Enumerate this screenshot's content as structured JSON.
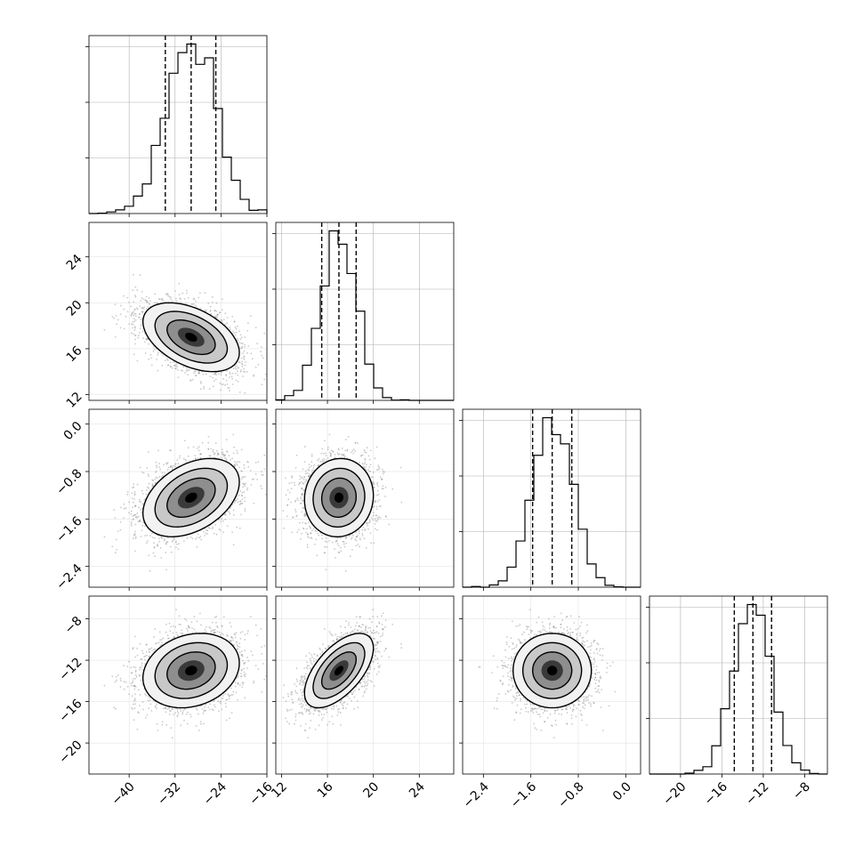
{
  "chart_data": {
    "type": "scatter",
    "subtype": "corner-plot",
    "grid": true,
    "params": [
      {
        "range": [
          -47,
          -16
        ],
        "ticks": [
          -40,
          -32,
          -24,
          -16
        ],
        "ticklabels": [
          "−40",
          "−32",
          "−24",
          "−16"
        ],
        "mean": -29.2,
        "sigma": 4.2,
        "quantiles": [
          -33.7,
          -29.2,
          -24.9
        ]
      },
      {
        "range": [
          11.5,
          27
        ],
        "ticks": [
          12,
          16,
          20,
          24
        ],
        "ticklabels": [
          "12",
          "16",
          "20",
          "24"
        ],
        "mean": 17.0,
        "sigma": 1.5,
        "quantiles": [
          15.5,
          17.0,
          18.5
        ]
      },
      {
        "range": [
          -2.75,
          0.25
        ],
        "ticks": [
          -2.4,
          -1.6,
          -0.8,
          0.0
        ],
        "ticklabels": [
          "−2.4",
          "−1.6",
          "−0.8",
          "0.0"
        ],
        "mean": -1.24,
        "sigma": 0.33,
        "quantiles": [
          -1.57,
          -1.24,
          -0.91
        ]
      },
      {
        "range": [
          -23,
          -5.8
        ],
        "ticks": [
          -20,
          -16,
          -12,
          -8
        ],
        "ticklabels": [
          "−20",
          "−16",
          "−12",
          "−8"
        ],
        "mean": -13.0,
        "sigma": 1.8,
        "quantiles": [
          -14.8,
          -13.0,
          -11.2
        ]
      }
    ],
    "correlations": {
      "0-1": -0.45,
      "0-2": 0.4,
      "0-3": 0.2,
      "1-2": 0.05,
      "1-3": 0.6,
      "2-3": 0.0
    },
    "hist_bins": 20,
    "density_bins": 20,
    "contour_levels_sigma": [
      0.5,
      1.0,
      1.5,
      2.0
    ],
    "colors": {
      "hist": "#000000",
      "density_dark": "#000000",
      "points": "#8a8a8a",
      "grid": "#b0b0b0"
    }
  }
}
